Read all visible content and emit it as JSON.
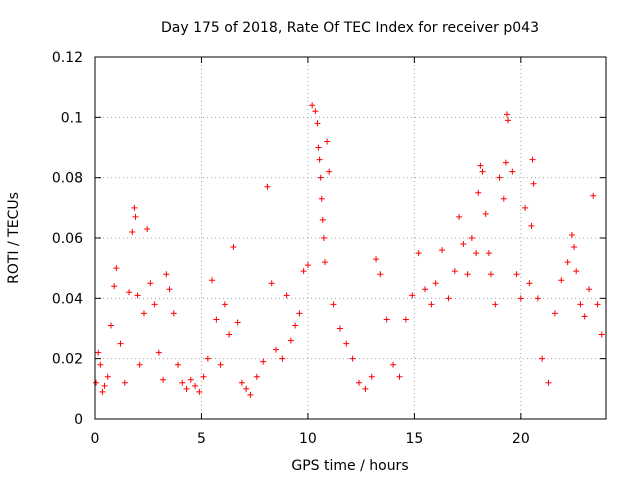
{
  "chart_data": {
    "type": "scatter",
    "title": "Day 175 of 2018, Rate Of TEC Index for receiver p043",
    "xlabel": "GPS time / hours",
    "ylabel": "ROTI / TECUs",
    "xlim": [
      0,
      24
    ],
    "ylim": [
      0,
      0.12
    ],
    "x_ticks": [
      0,
      5,
      10,
      15,
      20,
      25
    ],
    "x_tick_labels": [
      "0",
      "5",
      "10",
      "15",
      "20"
    ],
    "y_ticks": [
      0,
      0.02,
      0.04,
      0.06,
      0.08,
      0.1,
      0.12
    ],
    "y_tick_labels": [
      "0",
      "0.02",
      "0.04",
      "0.06",
      "0.08",
      "0.1",
      "0.12"
    ],
    "grid": true,
    "marker": "plus",
    "color": "#ff0000",
    "series": [
      {
        "name": "ROTI",
        "x": [
          0.05,
          0.15,
          0.25,
          0.35,
          0.45,
          0.6,
          0.75,
          0.9,
          1.0,
          1.2,
          1.4,
          1.6,
          1.75,
          1.85,
          1.9,
          2.0,
          2.1,
          2.3,
          2.45,
          2.6,
          2.8,
          3.0,
          3.2,
          3.35,
          3.5,
          3.7,
          3.9,
          4.1,
          4.3,
          4.5,
          4.7,
          4.9,
          5.1,
          5.3,
          5.5,
          5.7,
          5.9,
          6.1,
          6.3,
          6.5,
          6.7,
          6.9,
          7.1,
          7.3,
          7.6,
          7.9,
          8.1,
          8.3,
          8.5,
          8.8,
          9.0,
          9.2,
          9.4,
          9.6,
          9.8,
          10.0,
          10.2,
          10.35,
          10.45,
          10.5,
          10.55,
          10.6,
          10.65,
          10.7,
          10.75,
          10.8,
          10.9,
          11.0,
          11.2,
          11.5,
          11.8,
          12.1,
          12.4,
          12.7,
          13.0,
          13.2,
          13.4,
          13.7,
          14.0,
          14.3,
          14.6,
          14.9,
          15.2,
          15.5,
          15.8,
          16.0,
          16.3,
          16.6,
          16.9,
          17.1,
          17.3,
          17.5,
          17.7,
          17.9,
          18.0,
          18.1,
          18.2,
          18.35,
          18.5,
          18.6,
          18.8,
          19.0,
          19.2,
          19.3,
          19.35,
          19.4,
          19.6,
          19.8,
          20.0,
          20.2,
          20.4,
          20.5,
          20.55,
          20.6,
          20.8,
          21.0,
          21.3,
          21.6,
          21.9,
          22.2,
          22.4,
          22.5,
          22.6,
          22.8,
          23.0,
          23.2,
          23.4,
          23.6,
          23.8
        ],
        "y": [
          0.012,
          0.022,
          0.018,
          0.009,
          0.011,
          0.014,
          0.031,
          0.044,
          0.05,
          0.025,
          0.012,
          0.042,
          0.062,
          0.07,
          0.067,
          0.041,
          0.018,
          0.035,
          0.063,
          0.045,
          0.038,
          0.022,
          0.013,
          0.048,
          0.043,
          0.035,
          0.018,
          0.012,
          0.01,
          0.013,
          0.011,
          0.009,
          0.014,
          0.02,
          0.046,
          0.033,
          0.018,
          0.038,
          0.028,
          0.057,
          0.032,
          0.012,
          0.01,
          0.008,
          0.014,
          0.019,
          0.077,
          0.045,
          0.023,
          0.02,
          0.041,
          0.026,
          0.031,
          0.035,
          0.049,
          0.051,
          0.104,
          0.102,
          0.098,
          0.09,
          0.086,
          0.08,
          0.073,
          0.066,
          0.06,
          0.052,
          0.092,
          0.082,
          0.038,
          0.03,
          0.025,
          0.02,
          0.012,
          0.01,
          0.014,
          0.053,
          0.048,
          0.033,
          0.018,
          0.014,
          0.033,
          0.041,
          0.055,
          0.043,
          0.038,
          0.045,
          0.056,
          0.04,
          0.049,
          0.067,
          0.058,
          0.048,
          0.06,
          0.055,
          0.075,
          0.084,
          0.082,
          0.068,
          0.055,
          0.048,
          0.038,
          0.08,
          0.073,
          0.085,
          0.101,
          0.099,
          0.082,
          0.048,
          0.04,
          0.07,
          0.045,
          0.064,
          0.086,
          0.078,
          0.04,
          0.02,
          0.012,
          0.035,
          0.046,
          0.052,
          0.061,
          0.057,
          0.049,
          0.038,
          0.034,
          0.043,
          0.074,
          0.038,
          0.028
        ]
      }
    ]
  }
}
